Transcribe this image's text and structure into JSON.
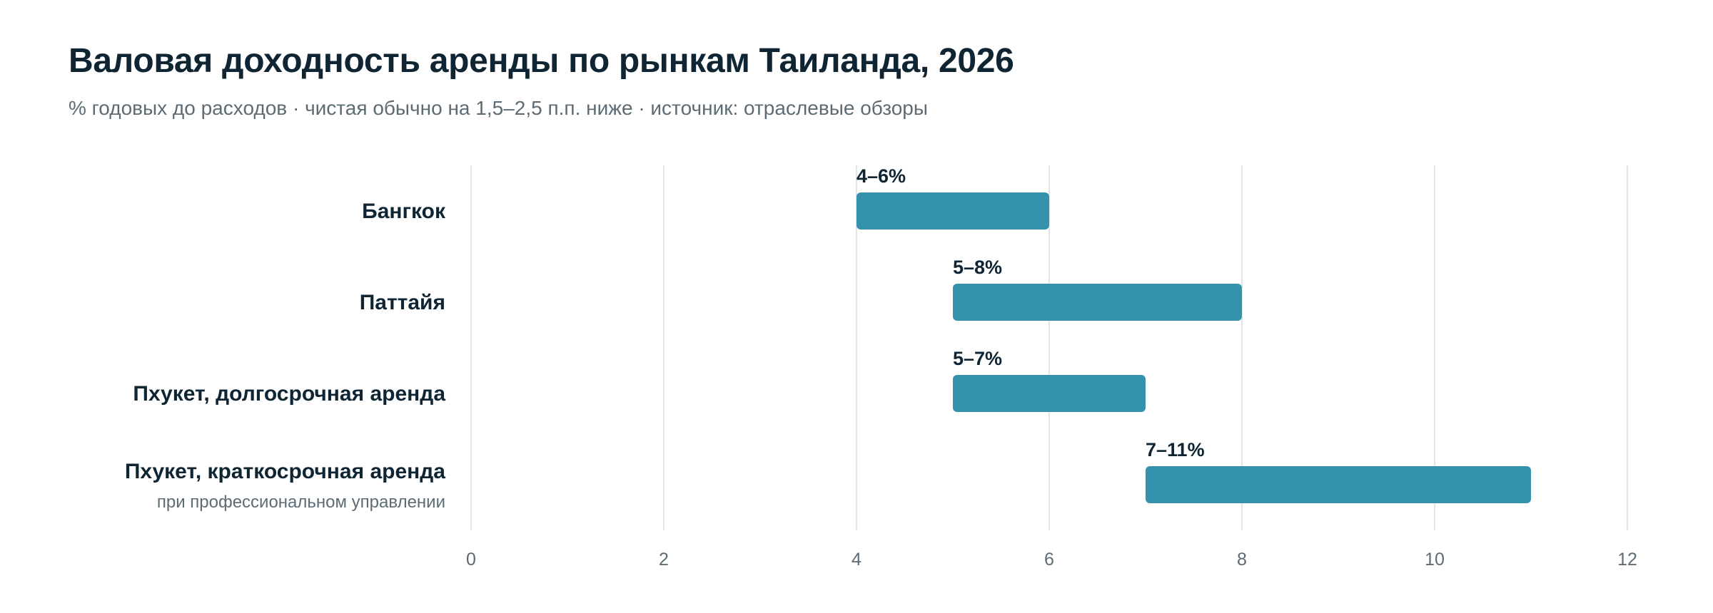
{
  "chart_data": {
    "type": "bar",
    "title": "Валовая доходность аренды по рынкам Таиланда, 2026",
    "subtitle": "% годовых до расходов · чистая обычно на 1,5–2,5 п.п. ниже · источник: отраслевые обзоры",
    "xlim": [
      0,
      12
    ],
    "xticks": [
      0,
      2,
      4,
      6,
      8,
      10,
      12
    ],
    "grid": true,
    "orientation": "horizontal",
    "bar_color": "#3592ad",
    "categories": [
      "Бангкок",
      "Паттайя",
      "Пхукет, долгосрочная аренда",
      "Пхукет, краткосрочная аренда"
    ],
    "category_notes": [
      "",
      "",
      "",
      "при профессиональном управлении"
    ],
    "ranges": [
      {
        "low": 4,
        "high": 6,
        "label": "4–6%"
      },
      {
        "low": 5,
        "high": 8,
        "label": "5–8%"
      },
      {
        "low": 5,
        "high": 7,
        "label": "5–7%"
      },
      {
        "low": 7,
        "high": 11,
        "label": "7–11%"
      }
    ]
  }
}
